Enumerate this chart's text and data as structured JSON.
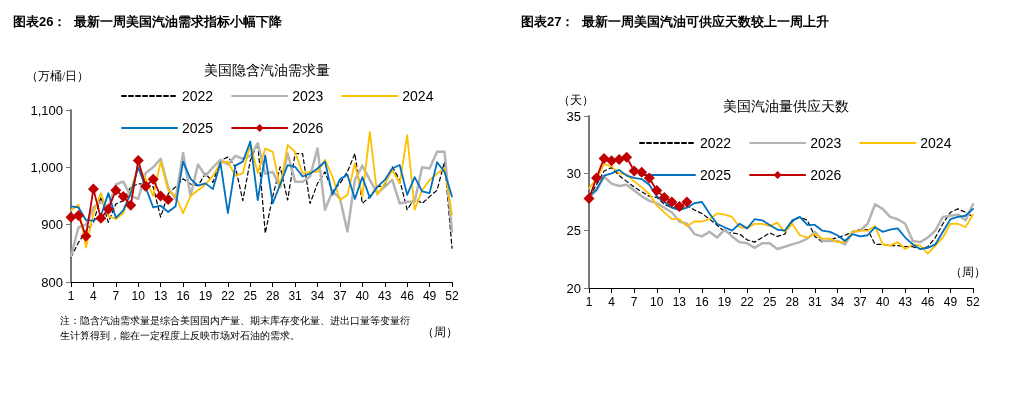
{
  "chart_data": [
    {
      "type": "line",
      "title": "图表26：  最新一周美国汽油需求指标小幅下降",
      "subtitle": "美国隐含汽油需求量",
      "ylabel": "（万桶/日）",
      "xlabel": "（周）",
      "annotations": [
        "注：隐含汽油需求量是综合美国国内产量、期末库存变化量、进出口量等变量衍生计算得到，能在一定程度上反映市场对石油的需求。"
      ],
      "categories": [
        "1",
        null,
        null,
        "4",
        null,
        null,
        "7",
        null,
        null,
        "10",
        null,
        null,
        "13",
        null,
        null,
        "16",
        null,
        null,
        "19",
        null,
        null,
        "22",
        null,
        null,
        "25",
        null,
        null,
        "28",
        null,
        null,
        "31",
        null,
        null,
        "34",
        null,
        null,
        "37",
        null,
        null,
        "40",
        null,
        null,
        "43",
        null,
        null,
        "46",
        null,
        null,
        "49",
        null,
        null,
        "52"
      ],
      "ylim": [
        800,
        1100
      ],
      "yticks": [
        800,
        900,
        {
          "value": 1000,
          "label": "1,000"
        },
        {
          "value": 1100,
          "label": "1,100"
        }
      ],
      "legend": "top",
      "grid": false,
      "marker": "none",
      "series": [
        {
          "name": "2022",
          "color": "#000000",
          "line_style": "dashed",
          "values": [
            843,
            869,
            889,
            904,
            948,
            904,
            936,
            942,
            966,
            971,
            971,
            966,
            913,
            954,
            966,
            980,
            971,
            968,
            989,
            974,
            1012,
            1018,
            1001,
            942,
            1012,
            1042,
            885,
            949,
            1001,
            943,
            1024,
            1024,
            937,
            972,
            992,
            958,
            972,
            992,
            1024,
            937,
            949,
            966,
            969,
            1001,
            978,
            926,
            946,
            937,
            949,
            960,
            1010,
            859
          ]
        },
        {
          "name": "2023",
          "color": "#b4b4b4",
          "values": [
            845,
            895,
            900,
            930,
            940,
            930,
            970,
            975,
            950,
            945,
            990,
            1000,
            1015,
            965,
            945,
            1025,
            950,
            1005,
            985,
            1000,
            1013,
            1005,
            1020,
            1015,
            1020,
            1042,
            989,
            992,
            966,
            1024,
            975,
            975,
            984,
            1033,
            926,
            958,
            946,
            888,
            978,
            1003,
            978,
            955,
            966,
            978,
            937,
            940,
            940,
            1000,
            998,
            1027,
            1027,
            888
          ]
        },
        {
          "name": "2024",
          "color": "#ffc000",
          "values": [
            925,
            935,
            860,
            920,
            955,
            915,
            910,
            920,
            960,
            1000,
            980,
            950,
            1010,
            960,
            950,
            920,
            950,
            960,
            970,
            985,
            1008,
            1010,
            985,
            990,
            1040,
            990,
            1033,
            1027,
            966,
            1039,
            1027,
            989,
            992,
            992,
            1013,
            984,
            943,
            952,
            1007,
            949,
            1062,
            952,
            972,
            995,
            972,
            1056,
            926,
            960,
            978,
            989,
            998,
            917
          ]
        },
        {
          "name": "2025",
          "color": "#0070c0",
          "values": [
            932,
            930,
            908,
            907,
            915,
            955,
            912,
            925,
            955,
            1000,
            null,
            930,
            933,
            922,
            932,
            1010,
            980,
            968,
            972,
            962,
            1008,
            920,
            1003,
            1010,
            1045,
            943,
            1021,
            937,
            970,
            1004,
            1001,
            984,
            989,
            998,
            1010,
            952,
            979,
            987,
            945,
            983,
            947,
            966,
            978,
            998,
            1004,
            952,
            983,
            958,
            955,
            1009,
            992,
            949
          ]
        },
        {
          "name": "2026",
          "color": "#c00000",
          "marker": "diamond",
          "values": [
            913,
            916,
            880,
            962,
            911,
            927,
            960,
            949,
            934,
            1012,
            967,
            979,
            950,
            944,
            null,
            null,
            null,
            null,
            null,
            null,
            null,
            null,
            null,
            null,
            null,
            null,
            null,
            null,
            null,
            null,
            null,
            null,
            null,
            null,
            null,
            null,
            null,
            null,
            null,
            null,
            null,
            null,
            null,
            null,
            null,
            null,
            null,
            null,
            null,
            null,
            null,
            null
          ]
        }
      ]
    },
    {
      "type": "line",
      "title": "图表27：  最新一周美国汽油可供应天数较上一周上升",
      "subtitle": "美国汽油量供应天数",
      "ylabel": "（天）",
      "xlabel": "（周）",
      "categories": [
        "1",
        null,
        null,
        "4",
        null,
        null,
        "7",
        null,
        null,
        "10",
        null,
        null,
        "13",
        null,
        null,
        "16",
        null,
        null,
        "19",
        null,
        null,
        "22",
        null,
        null,
        "25",
        null,
        null,
        "28",
        null,
        null,
        "31",
        null,
        null,
        "34",
        null,
        null,
        "37",
        null,
        null,
        "40",
        null,
        null,
        "43",
        null,
        null,
        "46",
        null,
        null,
        "49",
        null,
        null,
        "52"
      ],
      "ylim": [
        20,
        35
      ],
      "yticks": [
        20,
        25,
        30,
        35
      ],
      "legend": "top",
      "grid": false,
      "marker": "none",
      "series": [
        {
          "name": "2022",
          "color": "#000000",
          "line_style": "dashed",
          "values": [
            28.0,
            29.0,
            30.2,
            30.5,
            29.8,
            29.3,
            28.8,
            28.4,
            28.0,
            27.9,
            27.3,
            27.0,
            27.0,
            27.2,
            26.8,
            26.5,
            26.0,
            25.5,
            24.9,
            24.8,
            24.7,
            24.2,
            24.0,
            24.4,
            24.8,
            24.5,
            24.7,
            25.8,
            26.2,
            25.9,
            24.5,
            24.0,
            24.2,
            24.4,
            24.6,
            24.9,
            25.1,
            25.1,
            23.8,
            23.8,
            23.7,
            23.7,
            23.6,
            23.6,
            23.4,
            23.6,
            24.4,
            25.6,
            26.6,
            26.9,
            26.6,
            26.2
          ]
        },
        {
          "name": "2023",
          "color": "#b4b4b4",
          "values": [
            27.9,
            28.5,
            29.7,
            29.1,
            28.9,
            29.0,
            28.5,
            28.0,
            27.6,
            27.4,
            27.0,
            26.6,
            25.8,
            25.6,
            24.7,
            24.5,
            24.9,
            24.4,
            25.1,
            24.5,
            24.0,
            23.9,
            23.5,
            23.9,
            23.9,
            23.4,
            23.6,
            23.8,
            24.0,
            24.3,
            24.9,
            24.1,
            24.1,
            24.1,
            23.8,
            24.9,
            25.0,
            25.6,
            27.3,
            26.9,
            26.2,
            26.0,
            25.6,
            24.1,
            24.0,
            24.4,
            25.0,
            26.2,
            26.3,
            26.4,
            25.9,
            27.3
          ]
        },
        {
          "name": "2024",
          "color": "#ffc000",
          "values": [
            28.7,
            29.5,
            30.8,
            30.6,
            30.0,
            29.9,
            29.3,
            28.8,
            28.2,
            27.2,
            26.6,
            26.0,
            26.0,
            25.4,
            25.8,
            25.8,
            26.0,
            26.5,
            26.4,
            26.2,
            25.3,
            25.2,
            25.6,
            25.6,
            25.4,
            25.7,
            24.9,
            25.6,
            24.6,
            24.4,
            24.7,
            24.3,
            24.3,
            24.0,
            24.0,
            24.9,
            25.0,
            25.0,
            25.4,
            23.8,
            23.7,
            24.0,
            23.4,
            23.8,
            23.7,
            23.0,
            23.7,
            24.4,
            25.6,
            25.6,
            25.3,
            26.4
          ]
        },
        {
          "name": "2025",
          "color": "#0070c0",
          "values": [
            28.0,
            28.6,
            29.8,
            30.0,
            30.3,
            29.8,
            29.6,
            29.5,
            29.0,
            28.0,
            27.5,
            27.0,
            26.8,
            27.0,
            27.4,
            27.5,
            26.5,
            25.6,
            25.3,
            25.0,
            25.6,
            25.2,
            26.0,
            25.9,
            25.5,
            25.1,
            25.0,
            25.9,
            26.2,
            25.5,
            25.5,
            25.0,
            24.9,
            24.6,
            24.1,
            24.7,
            24.5,
            24.6,
            25.3,
            24.9,
            25.1,
            25.2,
            24.4,
            23.8,
            23.4,
            23.5,
            23.8,
            24.9,
            26.0,
            26.2,
            26.3,
            26.9
          ]
        },
        {
          "name": "2026",
          "color": "#c00000",
          "marker": "diamond",
          "values": [
            27.8,
            29.6,
            31.3,
            31.1,
            31.2,
            31.4,
            30.2,
            30.1,
            29.6,
            28.5,
            27.9,
            27.5,
            27.1,
            27.5,
            null,
            null,
            null,
            null,
            null,
            null,
            null,
            null,
            null,
            null,
            null,
            null,
            null,
            null,
            null,
            null,
            null,
            null,
            null,
            null,
            null,
            null,
            null,
            null,
            null,
            null,
            null,
            null,
            null,
            null,
            null,
            null,
            null,
            null,
            null,
            null,
            null,
            null
          ]
        }
      ]
    }
  ]
}
